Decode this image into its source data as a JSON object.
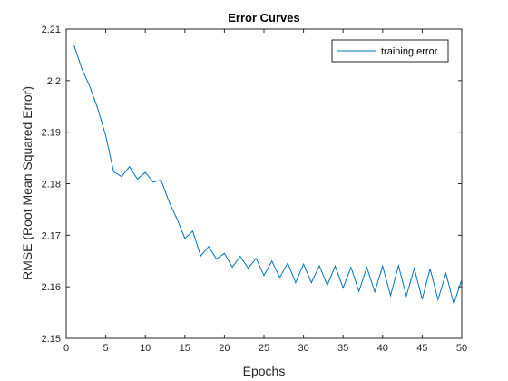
{
  "chart_data": {
    "type": "line",
    "title": "Error Curves",
    "xlabel": "Epochs",
    "ylabel": "RMSE (Root Mean Squared Error)",
    "xlim": [
      0,
      50
    ],
    "ylim": [
      2.15,
      2.21
    ],
    "x_ticks": [
      0,
      5,
      10,
      15,
      20,
      25,
      30,
      35,
      40,
      45,
      50
    ],
    "x_tick_labels": [
      "0",
      "5",
      "10",
      "15",
      "20",
      "25",
      "30",
      "35",
      "40",
      "45",
      "50"
    ],
    "y_ticks": [
      2.15,
      2.16,
      2.17,
      2.18,
      2.19,
      2.2,
      2.21
    ],
    "y_tick_labels": [
      "2.15",
      "2.16",
      "2.17",
      "2.18",
      "2.19",
      "2.2",
      "2.21"
    ],
    "grid": false,
    "legend_position": "top-right",
    "colors": {
      "series": "#0072BD",
      "axis": "#262626",
      "legend_border": "#262626"
    },
    "series": [
      {
        "name": "training error",
        "x": [
          1,
          2,
          3,
          4,
          5,
          6,
          7,
          8,
          9,
          10,
          11,
          12,
          13,
          14,
          15,
          16,
          17,
          18,
          19,
          20,
          21,
          22,
          23,
          24,
          25,
          26,
          27,
          28,
          29,
          30,
          31,
          32,
          33,
          34,
          35,
          36,
          37,
          38,
          39,
          40,
          41,
          42,
          43,
          44,
          45,
          46,
          47,
          48,
          49,
          50
        ],
        "y": [
          2.2068,
          2.2022,
          2.1988,
          2.1945,
          2.1893,
          2.1823,
          2.1814,
          2.1833,
          2.1809,
          2.1822,
          2.1803,
          2.1807,
          2.1765,
          2.1732,
          2.1694,
          2.1708,
          2.166,
          2.1678,
          2.1654,
          2.1665,
          2.1638,
          2.1659,
          2.1636,
          2.1655,
          2.1622,
          2.165,
          2.1618,
          2.1646,
          2.1608,
          2.1644,
          2.1608,
          2.1641,
          2.1603,
          2.164,
          2.1598,
          2.1638,
          2.1591,
          2.1638,
          2.159,
          2.164,
          2.1583,
          2.1641,
          2.1582,
          2.1636,
          2.1576,
          2.1635,
          2.1575,
          2.1626,
          2.1567,
          2.1614
        ]
      }
    ]
  }
}
